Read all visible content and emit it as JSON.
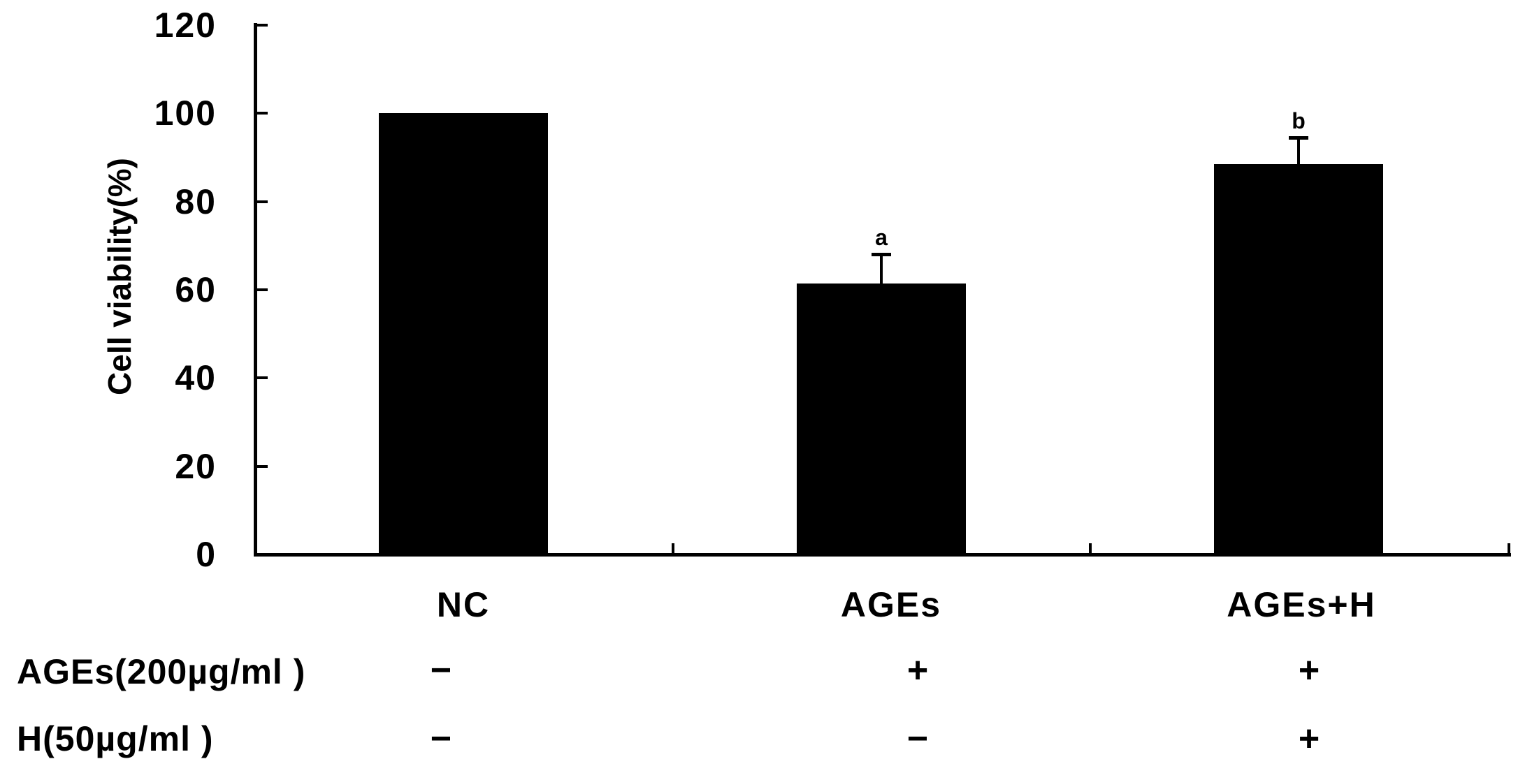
{
  "figure": {
    "background": "#ffffff",
    "ink_color": "#000000"
  },
  "chart_data": {
    "type": "bar",
    "title": "",
    "ylabel": "Cell viability(%)",
    "xlabel": "",
    "categories": [
      "NC",
      "AGEs",
      "AGEs+H"
    ],
    "values": [
      100,
      61.5,
      88.5
    ],
    "errors_upper": [
      0,
      6.5,
      6
    ],
    "significance_labels": [
      "",
      "a",
      "b"
    ],
    "ylim": [
      0,
      120
    ],
    "yticks": [
      0,
      20,
      40,
      60,
      80,
      100,
      120
    ],
    "bar_color": "#000000",
    "axis_color": "#000000",
    "grid": false,
    "legend": false
  },
  "treatment_rows": [
    {
      "label": "AGEs(200µg/ml )",
      "signs": [
        "−",
        "+",
        "+"
      ]
    },
    {
      "label": "H(50µg/ml )",
      "signs": [
        "−",
        "−",
        "+"
      ]
    }
  ]
}
